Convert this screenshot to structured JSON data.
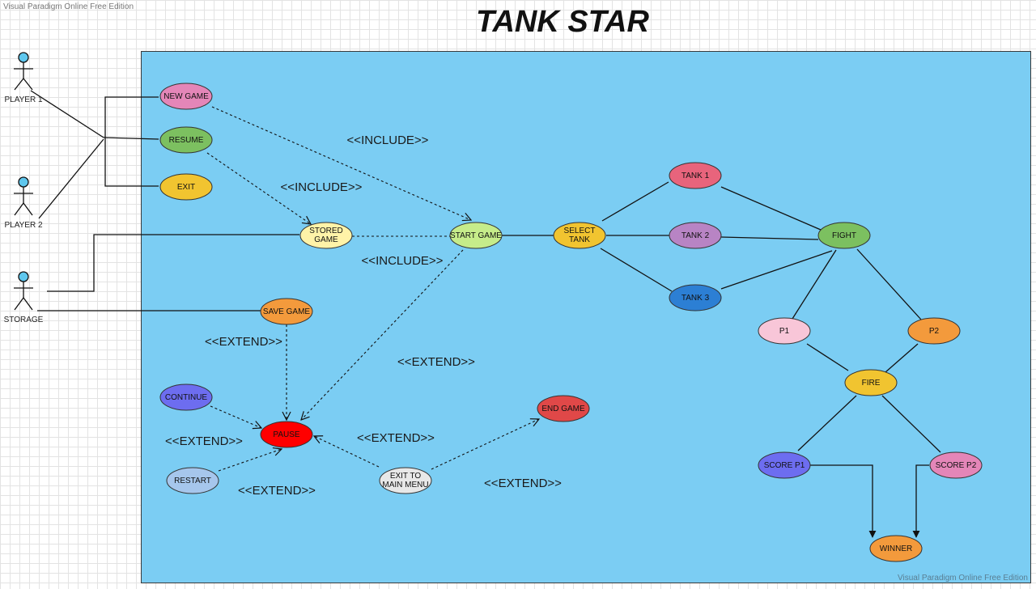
{
  "watermark": "Visual Paradigm Online Free Edition",
  "title": "TANK STAR",
  "actors": [
    {
      "id": "player1",
      "label": "PLAYER 1"
    },
    {
      "id": "player2",
      "label": "PLAYER 2"
    },
    {
      "id": "storage",
      "label": "STORAGE"
    }
  ],
  "use_cases": [
    {
      "id": "new_game",
      "label": "NEW GAME",
      "color": "#e486b8"
    },
    {
      "id": "resume",
      "label": "RESUME",
      "color": "#7cc060"
    },
    {
      "id": "exit",
      "label": "EXIT",
      "color": "#f1c430"
    },
    {
      "id": "stored_game",
      "label": "STORED GAME",
      "color": "#fff3a8"
    },
    {
      "id": "start_game",
      "label": "START GAME",
      "color": "#c6ec8a"
    },
    {
      "id": "select_tank",
      "label": "SELECT TANK",
      "color": "#f1c430"
    },
    {
      "id": "tank1",
      "label": "TANK 1",
      "color": "#e8647c"
    },
    {
      "id": "tank2",
      "label": "TANK 2",
      "color": "#b884c4"
    },
    {
      "id": "tank3",
      "label": "TANK 3",
      "color": "#2c7fd4"
    },
    {
      "id": "fight",
      "label": "FIGHT",
      "color": "#7cc060"
    },
    {
      "id": "p1",
      "label": "P1",
      "color": "#f8c6d8"
    },
    {
      "id": "p2",
      "label": "P2",
      "color": "#f39a3c"
    },
    {
      "id": "fire",
      "label": "FIRE",
      "color": "#f1c430"
    },
    {
      "id": "score_p1",
      "label": "SCORE P1",
      "color": "#6d6df0"
    },
    {
      "id": "score_p2",
      "label": "SCORE P2",
      "color": "#e486b8"
    },
    {
      "id": "winner",
      "label": "WINNER",
      "color": "#f39a3c"
    },
    {
      "id": "save_game",
      "label": "SAVE GAME",
      "color": "#f39a3c"
    },
    {
      "id": "pause",
      "label": "PAUSE",
      "color": "#ff0000"
    },
    {
      "id": "continue",
      "label": "CONTINUE",
      "color": "#6d6df0"
    },
    {
      "id": "restart",
      "label": "RESTART",
      "color": "#a6c6ec"
    },
    {
      "id": "exit_main",
      "label": "EXIT TO MAIN MENU",
      "color": "#e8e8e8"
    },
    {
      "id": "end_game",
      "label": "END GAME",
      "color": "#e04848"
    }
  ],
  "relation_labels": [
    {
      "id": "inc1",
      "text": "<<INCLUDE>>"
    },
    {
      "id": "inc2",
      "text": "<<INCLUDE>>"
    },
    {
      "id": "inc3",
      "text": "<<INCLUDE>>"
    },
    {
      "id": "ext1",
      "text": "<<EXTEND>>"
    },
    {
      "id": "ext2",
      "text": "<<EXTEND>>"
    },
    {
      "id": "ext3",
      "text": "<<EXTEND>>"
    },
    {
      "id": "ext4",
      "text": "<<EXTEND>>"
    },
    {
      "id": "ext5",
      "text": "<<EXTEND>>"
    },
    {
      "id": "ext6",
      "text": "<<EXTEND>>"
    }
  ]
}
